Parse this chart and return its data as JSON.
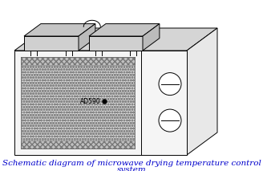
{
  "caption_line1": "Schematic diagram of microwave drying temperature control",
  "caption_line2": "system",
  "caption_color": "#0000cc",
  "caption_fontsize": 7.5,
  "label_ad590": "AD590",
  "bg_color": "#ffffff",
  "line_color": "#000000",
  "front_fill": "#f5f5f5",
  "right_fill": "#e8e8e8",
  "top_fill": "#d5d5d5",
  "panel_fill": "#d0d0d0",
  "cavity_fill": "#eeeeee",
  "strip_fill": "#c8c8c8",
  "mesh_fill": "#e0e0e0"
}
